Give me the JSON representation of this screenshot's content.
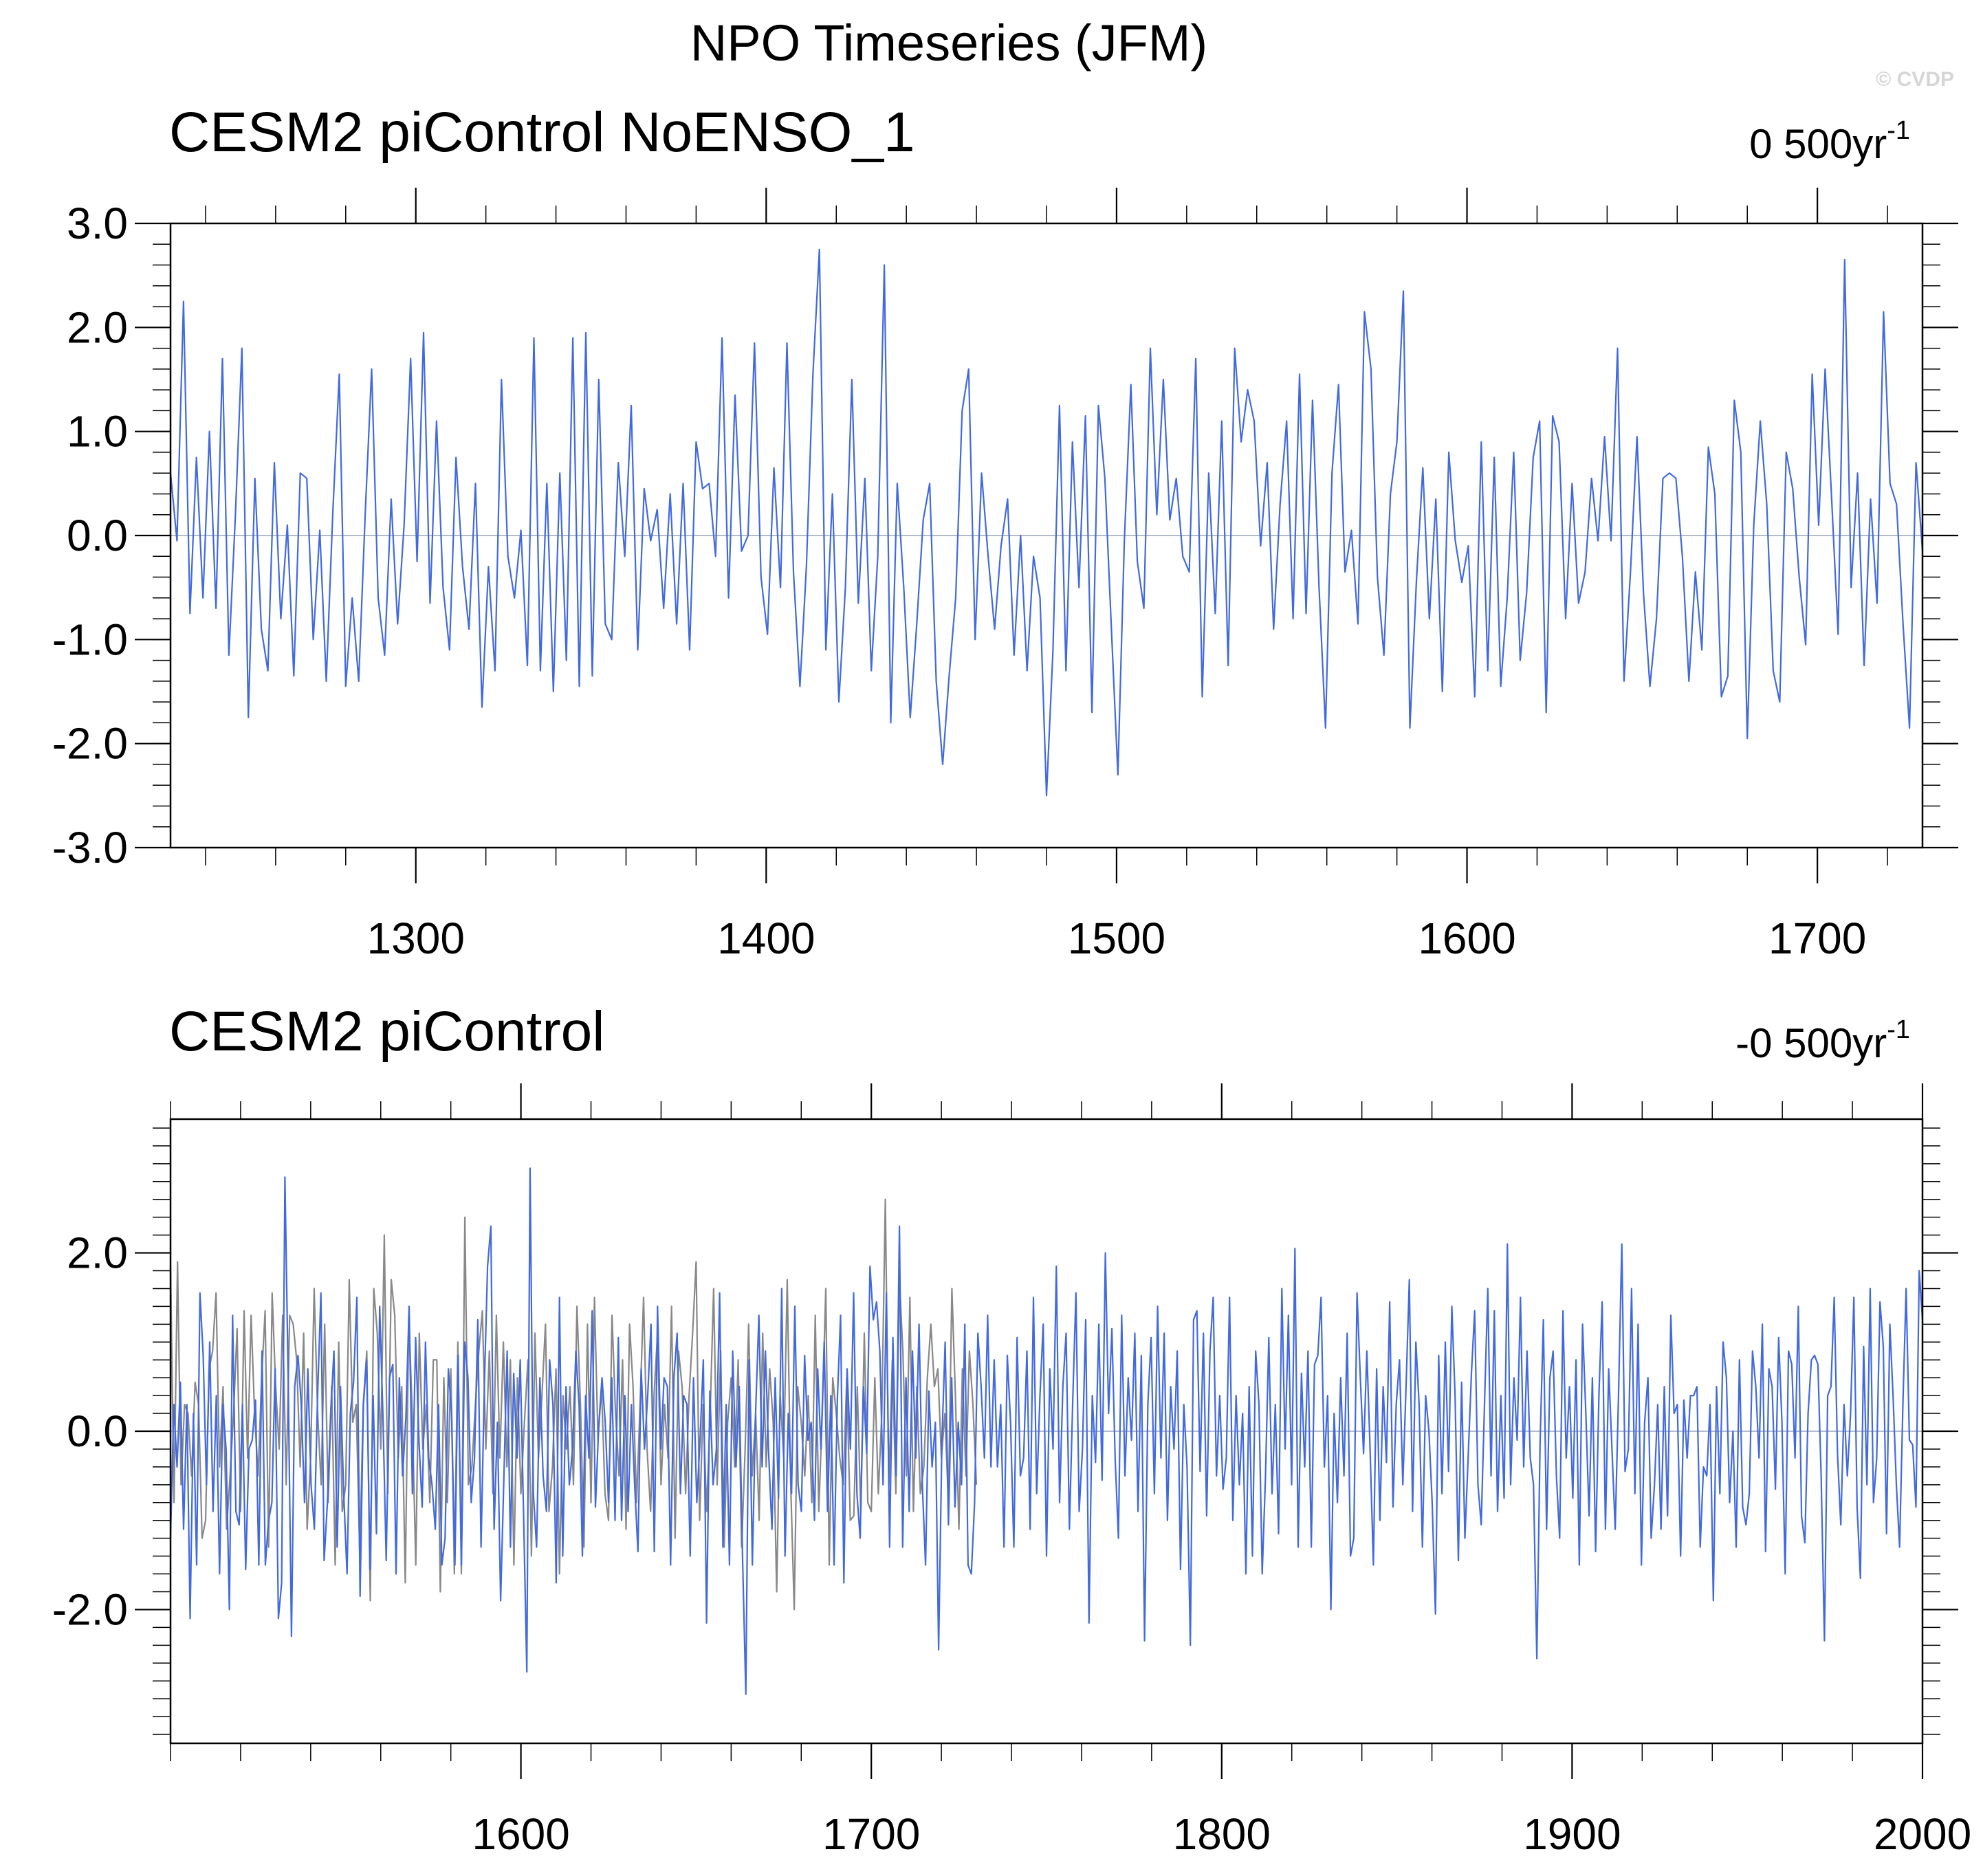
{
  "figure": {
    "title": "NPO Timeseries (JFM)",
    "watermark": "© CVDP"
  },
  "chart_data": [
    {
      "type": "line",
      "title": "CESM2 piControl NoENSO_1",
      "trend_value": "0 500yr",
      "trend_unit_exp": "-1",
      "x_range": [
        1230,
        1730
      ],
      "y_range": [
        -3.0,
        3.0
      ],
      "x_ticks": [
        "1300",
        "1400",
        "1500",
        "1600",
        "1700"
      ],
      "y_ticks": [
        "3.0",
        "2.0",
        "1.0",
        "0.0",
        "-1.0",
        "-2.0",
        "-3.0"
      ],
      "zero_line": true,
      "series": [
        {
          "color": "#4169E1",
          "x_start": 1230,
          "x_end": 1730,
          "values": [
            0.6,
            -0.05,
            2.25,
            -0.75,
            0.75,
            -0.6,
            1.0,
            -0.7,
            1.7,
            -1.15,
            0.2,
            1.8,
            -1.75,
            0.55,
            -0.9,
            -1.3,
            0.7,
            -0.8,
            0.1,
            -1.35,
            0.6,
            0.55,
            -1.0,
            0.05,
            -1.4,
            0.2,
            1.55,
            -1.45,
            -0.6,
            -1.4,
            0.2,
            1.6,
            -0.6,
            -1.15,
            0.35,
            -0.85,
            0.1,
            1.7,
            -0.25,
            1.95,
            -0.65,
            1.1,
            -0.5,
            -1.1,
            0.75,
            -0.3,
            -0.9,
            0.5,
            -1.65,
            -0.3,
            -1.3,
            1.5,
            -0.2,
            -0.6,
            0.05,
            -1.25,
            1.9,
            -1.3,
            0.5,
            -1.5,
            0.6,
            -1.2,
            1.9,
            -1.45,
            1.95,
            -1.35,
            1.5,
            -0.85,
            -1.0,
            0.7,
            -0.2,
            1.25,
            -1.1,
            0.45,
            -0.05,
            0.25,
            -0.7,
            0.4,
            -0.85,
            0.5,
            -1.1,
            0.9,
            0.45,
            0.5,
            -0.2,
            1.9,
            -0.6,
            1.35,
            -0.15,
            0.0,
            1.85,
            -0.4,
            -0.95,
            0.65,
            -0.5,
            1.85,
            -0.35,
            -1.45,
            -0.3,
            1.55,
            2.75,
            -1.1,
            0.4,
            -1.6,
            -0.5,
            1.5,
            -0.65,
            0.55,
            -1.3,
            -0.2,
            2.6,
            -1.8,
            0.5,
            -0.5,
            -1.75,
            -0.85,
            0.15,
            0.5,
            -1.4,
            -2.2,
            -1.35,
            -0.6,
            1.2,
            1.6,
            -1.0,
            0.6,
            -0.2,
            -0.9,
            -0.1,
            0.35,
            -1.15,
            0.0,
            -1.3,
            -0.2,
            -0.6,
            -2.5,
            -1.1,
            1.25,
            -1.3,
            0.9,
            -0.5,
            1.15,
            -1.7,
            1.25,
            0.55,
            -0.9,
            -2.3,
            -0.05,
            1.45,
            -0.25,
            -0.7,
            1.8,
            0.2,
            1.5,
            0.15,
            0.55,
            -0.2,
            -0.35,
            1.7,
            -1.55,
            0.6,
            -0.75,
            1.1,
            -1.25,
            1.8,
            0.9,
            1.4,
            1.1,
            -0.1,
            0.7,
            -0.9,
            0.3,
            1.1,
            -0.8,
            1.55,
            -0.75,
            1.3,
            -0.5,
            -1.85,
            0.6,
            1.45,
            -0.35,
            0.05,
            -0.85,
            2.15,
            1.6,
            -0.4,
            -1.15,
            0.4,
            0.9,
            2.35,
            -1.85,
            -0.45,
            0.65,
            -0.8,
            0.35,
            -1.5,
            0.8,
            -0.05,
            -0.45,
            -0.1,
            -1.55,
            0.9,
            -1.3,
            0.75,
            -1.45,
            -0.6,
            0.8,
            -1.2,
            -0.55,
            0.75,
            1.1,
            -1.7,
            1.15,
            0.9,
            -0.8,
            0.5,
            -0.65,
            -0.35,
            0.55,
            -0.05,
            0.95,
            -0.05,
            1.8,
            -1.4,
            -0.35,
            0.95,
            -0.55,
            -1.45,
            -0.8,
            0.55,
            0.6,
            0.55,
            -0.2,
            -1.4,
            -0.35,
            -1.1,
            0.85,
            0.4,
            -1.55,
            -1.35,
            1.3,
            0.8,
            -1.95,
            0.1,
            1.1,
            0.3,
            -1.3,
            -1.6,
            0.8,
            0.45,
            -0.4,
            -1.05,
            1.55,
            0.1,
            1.6,
            0.35,
            -0.95,
            2.65,
            -0.5,
            0.6,
            -1.25,
            0.35,
            -0.65,
            2.15,
            0.5,
            0.3,
            -0.85,
            -1.85,
            0.7,
            -0.15
          ]
        }
      ]
    },
    {
      "type": "line",
      "title": "CESM2 piControl",
      "trend_value": "-0 500yr",
      "trend_unit_exp": "-1",
      "x_range": [
        1500,
        2000
      ],
      "y_range": [
        -3.5,
        3.5
      ],
      "x_ticks": [
        "1600",
        "1700",
        "1800",
        "1900",
        "2000"
      ],
      "y_ticks": [
        "2.0",
        "0.0",
        "-2.0"
      ],
      "zero_line": true,
      "series": [
        {
          "color": "#4169E1",
          "x_start": 1500,
          "x_end": 2000,
          "values": [
            -1.2,
            0.3,
            -0.4,
            0.55,
            -1.1,
            0.3,
            -2.1,
            0.2,
            -1.5,
            1.55,
            0.85,
            -0.6,
            1.0,
            -0.9,
            0.4,
            -1.6,
            0.3,
            -0.2,
            -2.0,
            1.3,
            -0.9,
            -1.05,
            0.3,
            -1.55,
            -0.2,
            -0.1,
            0.35,
            -1.5,
            0.9,
            -1.5,
            -1.0,
            -0.8,
            0.7,
            -2.1,
            -1.7,
            2.85,
            0.6,
            -2.3,
            0.5,
            0.85,
            0.3,
            -0.8,
            0.7,
            -0.6,
            -1.1,
            0.4,
            1.55,
            -1.45,
            -0.8,
            0.2,
            0.9,
            -1.3,
            0.5,
            -0.7,
            -1.6,
            0.2,
            0.55,
            1.5,
            -1.85,
            0.3,
            0.8,
            -1.55,
            0.4,
            -1.15,
            1.4,
            0.15,
            -1.45,
            0.6,
            0.75,
            -1.6,
            0.6,
            -0.5,
            0.15,
            1.4,
            -0.7,
            1.05,
            -0.1,
            -0.85,
            1.0,
            -0.3,
            -0.6,
            -1.1,
            0.3,
            -1.5,
            -1.2,
            0.7,
            0.2,
            -1.5,
            0.85,
            -1.5,
            1.0,
            0.6,
            -0.8,
            -0.3,
            1.25,
            -1.3,
            0.5,
            1.85,
            2.3,
            -1.1,
            0.1,
            -1.9,
            -0.5,
            0.9,
            -1.3,
            0.65,
            -0.3,
            0.8,
            -0.9,
            -2.7,
            2.95,
            -0.7,
            -1.3,
            0.6,
            -0.5,
            -0.9,
            0.8,
            0.3,
            -1.7,
            1.5,
            -1.4,
            0.5,
            -0.6,
            -0.2,
            0.9,
            0.3,
            -1.4,
            0.4,
            -0.3,
            1.35,
            -0.85,
            0.05,
            0.6,
            0.1,
            -0.8,
            0.6,
            -1.0,
            1.05,
            -1.0,
            0.4,
            -0.9,
            0.3,
            -0.6,
            -1.35,
            0.7,
            -0.2,
            0.4,
            1.2,
            -1.35,
            1.4,
            -0.2,
            0.6,
            0.5,
            -1.5,
            0.6,
            1.1,
            -0.7,
            0.4,
            0.3,
            -1.4,
            0.6,
            -0.8,
            -0.1,
            0.8,
            -2.15,
            0.45,
            -0.6,
            -0.2,
            1.55,
            -1.3,
            0.3,
            -1.5,
            0.9,
            -0.4,
            0.5,
            -1.4,
            -2.95,
            0.8,
            -1.5,
            0.2,
            1.3,
            -0.4,
            0.9,
            -0.25,
            -1.1,
            0.6,
            -0.75,
            1.6,
            -1.4,
            0.2,
            -0.7,
            1.4,
            -0.6,
            -0.9,
            0.85,
            -0.1,
            0.1,
            -1.0,
            0.7,
            -0.2,
            1.0,
            -0.9,
            0.4,
            -1.5,
            0.35,
            1.3,
            -1.7,
            0.7,
            -0.2,
            1.55,
            -0.7,
            -1.2,
            0.5,
            -0.25,
            1.85,
            1.25,
            1.45,
            0.9,
            -0.6,
            1.55,
            -1.3,
            1.05,
            -0.5,
            2.3,
            -1.3,
            0.6,
            -0.9,
            0.9,
            -0.3,
            1.2,
            -0.6,
            -1.5,
            0.45,
            -0.4,
            0.1,
            -2.45,
            -0.1,
            1.0,
            -1.05,
            0.6,
            -0.85,
            0.1,
            -0.6,
            1.2,
            -1.5,
            -1.6,
            -0.8,
            1.1,
            0.5,
            -0.3,
            1.3,
            -0.4,
            0.8,
            -0.4,
            0.3,
            -1.3,
            0.85,
            0.1,
            -1.3,
            1.05,
            -0.5,
            -0.3,
            0.9,
            -1.1,
            1.5,
            -0.7,
            0.4,
            1.2,
            -1.4,
            0.7,
            -0.2,
            1.85,
            -0.8,
            0.5,
            1.1,
            -1.1,
            0.3,
            1.55,
            -0.9,
            -0.2,
            1.25,
            -2.15,
            0.4,
            -0.35,
            1.2,
            -0.55,
            2.0,
            0.2,
            1.15,
            -0.3,
            -1.2,
            1.3,
            -0.5,
            0.6,
            -0.1,
            1.1,
            -0.9,
            0.85,
            -2.35,
            0.3,
            1.05,
            -0.7,
            1.4,
            -0.3,
            1.1,
            -1.0,
            0.5,
            -0.2,
            0.9,
            -1.55,
            0.3,
            -0.4,
            -2.4,
            1.25,
            1.35,
            -0.45,
            1.1,
            -0.95,
            0.9,
            1.5,
            -0.5,
            0.4,
            -0.65,
            -0.3,
            1.5,
            -1.0,
            0.4,
            -0.6,
            0.2,
            -1.6,
            0.5,
            -1.4,
            0.9,
            0.3,
            -1.6,
            -0.5,
            1.05,
            -0.7,
            0.3,
            -1.15,
            1.6,
            -0.2,
            1.3,
            -0.6,
            2.05,
            -1.3,
            0.65,
            -0.4,
            0.9,
            -1.3,
            0.75,
            0.85,
            1.5,
            -0.4,
            0.4,
            -2.0,
            0.2,
            -0.8,
            0.6,
            -0.5,
            1.1,
            -1.4,
            -1.2,
            1.55,
            0.6,
            -0.25,
            0.9,
            -0.2,
            -1.5,
            0.7,
            -1.0,
            0.5,
            -0.35,
            1.45,
            -0.85,
            0.3,
            0.8,
            -0.6,
            0.5,
            1.7,
            -0.9,
            1.0,
            0.3,
            -1.3,
            0.4,
            0.0,
            -0.8,
            -2.05,
            0.85,
            -0.7,
            1.0,
            -0.45,
            1.4,
            0.4,
            -1.45,
            0.55,
            -1.2,
            -0.3,
            0.65,
            1.35,
            -0.6,
            -1.05,
            0.3,
            1.6,
            -0.5,
            1.35,
            -0.9,
            0.4,
            -0.75,
            2.1,
            -0.6,
            0.6,
            -0.1,
            1.5,
            -0.4,
            0.9,
            -0.3,
            -0.6,
            -2.55,
            -0.15,
            1.25,
            -1.1,
            0.6,
            0.9,
            -0.5,
            -1.2,
            1.35,
            -0.3,
            0.5,
            -0.75,
            0.8,
            -1.5,
            1.2,
            0.2,
            -0.95,
            0.6,
            -1.35,
            0.4,
            1.45,
            -1.1,
            0.7,
            -0.2,
            -1.1,
            0.4,
            2.1,
            -0.45,
            -0.2,
            1.6,
            -0.7,
            1.2,
            -1.5,
            0.1,
            0.6,
            -1.2,
            -0.6,
            0.3,
            -1.1,
            0.5,
            -0.95,
            1.3,
            0.2,
            0.3,
            -1.4,
            0.35,
            -0.3,
            0.4,
            0.4,
            0.5,
            -1.3,
            -0.4,
            -0.5,
            0.3,
            -1.9,
            0.5,
            -0.7,
            1.0,
            0.6,
            -0.8,
            0.0,
            -1.3,
            0.8,
            -0.85,
            -1.05,
            -0.7,
            0.9,
            0.5,
            -0.3,
            1.2,
            -1.35,
            0.7,
            0.5,
            -0.65,
            1.05,
            0.1,
            -1.6,
            0.9,
            0.75,
            -0.3,
            1.4,
            -0.95,
            -1.25,
            0.2,
            0.8,
            0.85,
            0.75,
            -0.5,
            -2.35,
            0.4,
            0.5,
            1.5,
            -0.25,
            -1.05,
            0.3,
            -0.5,
            0.2,
            1.5,
            -0.85,
            -1.65,
            0.95,
            -0.6,
            1.6,
            -0.8,
            -0.3,
            1.45,
            0.95,
            -1.15,
            1.2,
            0.4,
            -0.6,
            -1.3,
            0.3,
            1.6,
            -0.1,
            -0.15,
            -0.85,
            1.8,
            1.25
          ]
        },
        {
          "color": "#888888",
          "x_start": 1500,
          "x_end": 1730,
          "values": [
            1.85,
            -0.8,
            1.9,
            -0.6,
            0.3,
            0.2,
            -0.5,
            0.55,
            0.3,
            -1.2,
            -1.0,
            0.7,
            0.9,
            1.55,
            -0.4,
            0.5,
            -1.1,
            -0.5,
            0.2,
            1.15,
            -0.9,
            1.35,
            -0.3,
            1.3,
            0.2,
            -0.5,
            0.6,
            1.35,
            -1.3,
            1.55,
            0.5,
            -0.2,
            1.3,
            -0.6,
            1.3,
            1.2,
            0.8,
            -0.4,
            1.1,
            -1.1,
            -0.3,
            1.6,
            0.2,
            -0.6,
            1.2,
            -0.8,
            0.5,
            -1.5,
            1.0,
            -0.9,
            -0.6,
            1.7,
            0.1,
            0.3,
            -1.4,
            0.3,
            0.9,
            -1.9,
            1.6,
            1.1,
            -0.2,
            2.2,
            -0.7,
            1.7,
            1.3,
            -0.3,
            0.5,
            -1.7,
            1.3,
            0.2,
            -1.5,
            1.1,
            -0.2,
            0.3,
            -0.8,
            0.8,
            0.8,
            -1.8,
            0.6,
            -0.8,
            0.7,
            -1.6,
            1.0,
            -1.6,
            2.4,
            -0.6,
            -0.4,
            0.3,
            0.9,
            1.35,
            -0.2,
            0.9,
            -0.7,
            1.3,
            -0.3,
            1.0,
            -0.4,
            0.8,
            -1.5,
            0.6,
            -0.7,
            0.1,
            0.8,
            -1.4,
            1.1,
            -0.3,
            0.4,
            1.2,
            -0.9,
            -0.4,
            0.7,
            -1.6,
            0.4,
            -0.2,
            0.5,
            -0.6,
            1.4,
            0.3,
            -1.3,
            1.2,
            -0.8,
            1.5,
            -0.1,
            0.5,
            -0.7,
            -1.0,
            1.3,
            0.2,
            -0.5,
            0.8,
            -1.1,
            1.2,
            0.5,
            -0.8,
            0.3,
            1.5,
            -0.2,
            -0.9,
            0.4,
            1.1,
            -0.6,
            0.3,
            -0.3,
            1.4,
            -1.2,
            0.9,
            0.5,
            -0.7,
            0.4,
            1.1,
            1.9,
            -1.0,
            0.3,
            -0.9,
            0.2,
            1.6,
            -0.6,
            0.9,
            -1.3,
            0.1,
            0.6,
            -0.4,
            0.8,
            -1.3,
            -0.2,
            1.2,
            -0.5,
            0.2,
            -1.0,
            1.1,
            -0.4,
            0.7,
            0.1,
            -1.8,
            0.4,
            -0.3,
            1.7,
            -0.6,
            -2.0,
            0.5,
            0.1,
            -0.5,
            0.4,
            -0.8,
            1.3,
            -0.9,
            0.2,
            1.6,
            -1.5,
            0.6,
            0.2,
            -0.3,
            -0.6,
            0.6,
            -1.0,
            -0.95,
            0.5,
            -0.9,
            1.1,
            -0.8,
            -0.9,
            0.6,
            -0.7,
            0.2,
            2.6,
            -0.6,
            0.8,
            -0.7,
            1.7,
            0.9,
            -0.5,
            1.5,
            -0.9,
            0.5,
            -0.7,
            -0.4,
            0.6,
            1.2,
            0.5,
            0.7,
            -0.3,
            0.2,
            -0.8,
            1.6,
            0.4,
            -1.1,
            0.7,
            -0.5,
            0.9,
            0.3,
            -0.6
          ]
        }
      ]
    }
  ]
}
